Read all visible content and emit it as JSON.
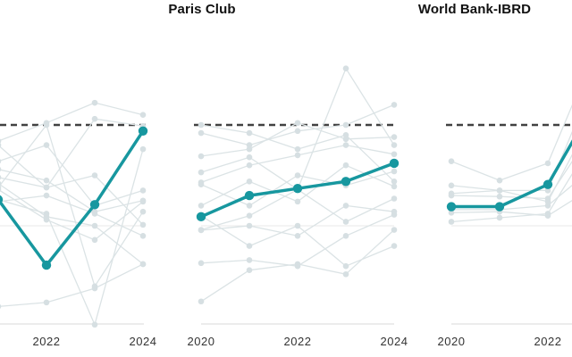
{
  "chart_data": {
    "type": "line",
    "title": "",
    "x_years": [
      2020,
      2021,
      2022,
      2023,
      2024
    ],
    "ylim": [
      0,
      150
    ],
    "ref_line": {
      "value": 100,
      "style": "dashed"
    },
    "gridline_value": 50,
    "legend": "none",
    "colors": {
      "highlight": "#17979f",
      "background_line": "#dbe3e5",
      "background_dot": "#d6dfe2",
      "ref_line": "#414141",
      "axis_line": "#d8d8d8",
      "gridline": "#e9e9e9",
      "tick_label": "#333333",
      "title": "#111111"
    },
    "panels": [
      {
        "title": "",
        "x_ticks": [
          {
            "year": 2022,
            "label": "2022"
          },
          {
            "year": 2024,
            "label": "2024"
          }
        ],
        "highlight": [
          null,
          63,
          30.5,
          60.5,
          97
        ],
        "background": [
          [
            88,
            92,
            101,
            111,
            105
          ],
          [
            95,
            90,
            69,
            103,
            99.5
          ],
          [
            72,
            82,
            90,
            60,
            67.5
          ],
          [
            80,
            78,
            72.5,
            57,
            62.5
          ],
          [
            60,
            74,
            69,
            75,
            50.5
          ],
          [
            45,
            71,
            54.5,
            50,
            31
          ],
          [
            65,
            68,
            53,
            43,
            62
          ],
          [
            50,
            62,
            65,
            56,
            45
          ],
          [
            30,
            10,
            12,
            19,
            31
          ],
          [
            105,
            69,
            100,
            20,
            57
          ],
          [
            58,
            63,
            56,
            1,
            88
          ]
        ]
      },
      {
        "title": "Paris Club",
        "x_ticks": [
          {
            "year": 2020,
            "label": "2020"
          },
          {
            "year": 2022,
            "label": "2022"
          },
          {
            "year": 2024,
            "label": "2024"
          }
        ],
        "highlight": [
          54.5,
          65,
          68.5,
          72,
          81
        ],
        "background": [
          [
            76.5,
            84,
            68,
            128,
            90
          ],
          [
            96,
            90,
            97,
            100,
            110
          ],
          [
            84.5,
            88,
            101,
            93,
            94
          ],
          [
            71.5,
            80,
            85,
            90,
            85.5
          ],
          [
            70.5,
            60,
            75,
            70,
            77
          ],
          [
            60,
            72,
            62,
            80,
            69.5
          ],
          [
            48,
            55,
            68,
            52,
            63.5
          ],
          [
            47.8,
            50,
            45,
            60,
            57
          ],
          [
            31.5,
            33,
            30,
            45,
            55.5
          ],
          [
            12.5,
            28,
            31,
            26,
            48
          ],
          [
            55,
            40,
            50,
            30,
            40
          ],
          [
            100,
            96,
            88,
            95,
            72
          ]
        ]
      },
      {
        "title": "World Bank-IBRD",
        "x_ticks": [
          {
            "year": 2020,
            "label": "2020"
          },
          {
            "year": 2022,
            "label": "2022"
          }
        ],
        "highlight": [
          59.5,
          59.5,
          70.5,
          112,
          null
        ],
        "background": [
          [
            82,
            72.5,
            81,
            138,
            null
          ],
          [
            66,
            67.5,
            67.5,
            125,
            null
          ],
          [
            65,
            64.5,
            63.5,
            100,
            null
          ],
          [
            58,
            58,
            60,
            80,
            null
          ],
          [
            56.5,
            57,
            55,
            70,
            null
          ],
          [
            52,
            54,
            56,
            95,
            null
          ],
          [
            70,
            67.5,
            62,
            108,
            null
          ]
        ]
      }
    ]
  }
}
